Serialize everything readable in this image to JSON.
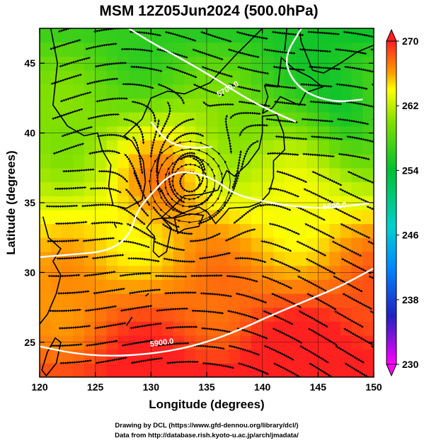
{
  "chart_data": {
    "type": "heatmap",
    "title": "MSM 12Z05Jun2024 (500.0hPa)",
    "xlabel": "Longitude (degrees)",
    "ylabel": "Latitude  (degrees)",
    "xlim": [
      120,
      150
    ],
    "ylim": [
      22.5,
      47.5
    ],
    "xticks": [
      120,
      125,
      130,
      135,
      140,
      145,
      150
    ],
    "yticks": [
      25,
      30,
      35,
      40,
      45
    ],
    "colorbar": {
      "min": 230,
      "max": 270,
      "ticks": [
        230,
        238,
        246,
        254,
        262,
        270
      ],
      "stops": [
        {
          "v": 230,
          "color": "#ff00ff"
        },
        {
          "v": 236,
          "color": "#2020c0"
        },
        {
          "v": 242,
          "color": "#0088ff"
        },
        {
          "v": 247,
          "color": "#00d0d0"
        },
        {
          "v": 254,
          "color": "#00c030"
        },
        {
          "v": 260,
          "color": "#80e000"
        },
        {
          "v": 264,
          "color": "#ffff00"
        },
        {
          "v": 266,
          "color": "#ffa000"
        },
        {
          "v": 270,
          "color": "#ff2020"
        }
      ]
    },
    "contour_labels": [
      {
        "text": "5700.0",
        "lon": 137.0,
        "lat": 43.0,
        "angle": -30
      },
      {
        "text": "5800.0",
        "lon": 146.5,
        "lat": 34.6,
        "angle": -5
      },
      {
        "text": "5900.0",
        "lon": 131.0,
        "lat": 24.8,
        "angle": -8
      }
    ],
    "contours": [
      {
        "name": "5900",
        "points": [
          [
            120,
            24.7
          ],
          [
            123,
            24.2
          ],
          [
            126,
            24.0
          ],
          [
            129,
            24.1
          ],
          [
            132,
            24.4
          ],
          [
            135,
            25.0
          ],
          [
            138,
            25.9
          ],
          [
            141,
            27.0
          ],
          [
            144,
            28.0
          ],
          [
            147,
            29.0
          ],
          [
            150,
            30.3
          ]
        ]
      },
      {
        "name": "5800",
        "points": [
          [
            120,
            31.1
          ],
          [
            123,
            31.3
          ],
          [
            126,
            31.5
          ],
          [
            128,
            32.5
          ],
          [
            128.8,
            34.5
          ],
          [
            130,
            35.6
          ],
          [
            131.5,
            36.9
          ],
          [
            133,
            37.3
          ],
          [
            135.5,
            36.8
          ],
          [
            137.5,
            35.6
          ],
          [
            140,
            35.1
          ],
          [
            143,
            34.7
          ],
          [
            146,
            34.6
          ],
          [
            150,
            35.0
          ]
        ]
      },
      {
        "name": "5700",
        "points": [
          [
            128,
            47.5
          ],
          [
            130,
            46.5
          ],
          [
            133,
            45.2
          ],
          [
            136,
            43.8
          ],
          [
            138.5,
            42.5
          ],
          [
            141,
            41.5
          ],
          [
            143,
            40.8
          ]
        ]
      },
      {
        "name": "5700b",
        "points": [
          [
            143.5,
            47.5
          ],
          [
            142,
            45.5
          ],
          [
            142.5,
            44
          ],
          [
            144,
            42.8
          ],
          [
            146.5,
            42.2
          ],
          [
            149,
            42.4
          ]
        ]
      },
      {
        "name": "5600",
        "points": [
          [
            130,
            40.8
          ],
          [
            131.5,
            39.3
          ],
          [
            133.5,
            38.9
          ],
          [
            135.5,
            39.0
          ]
        ]
      }
    ],
    "vortex_center": [
      133.5,
      36.5
    ],
    "credits": [
      "Drawing by DCL (https://www.gfd-dennou.org/library/dcl/)",
      "Data from http://database.rish.kyoto-u.ac.jp/arch/jmadata/"
    ]
  }
}
